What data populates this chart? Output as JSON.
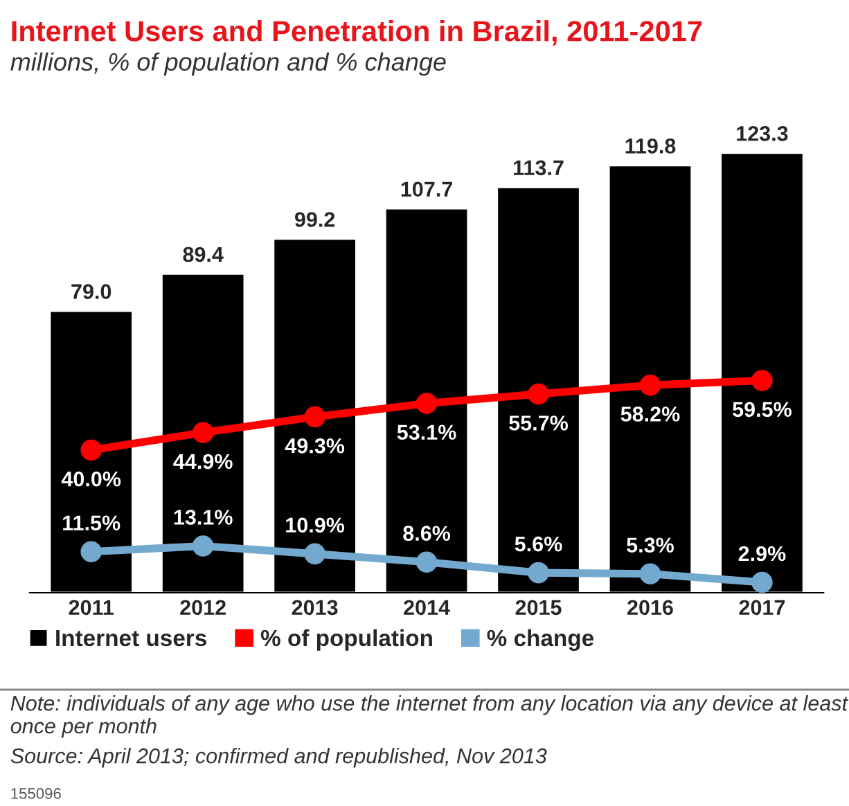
{
  "chart_data": {
    "type": "bar",
    "title": "Internet Users and Penetration in Brazil, 2011-2017",
    "subtitle": "millions, % of population and % change",
    "categories": [
      "2011",
      "2012",
      "2013",
      "2014",
      "2015",
      "2016",
      "2017"
    ],
    "series": [
      {
        "name": "Internet users",
        "color": "#000000",
        "values": [
          79.0,
          89.4,
          99.2,
          107.7,
          113.7,
          119.8,
          123.3
        ],
        "value_labels": [
          "79.0",
          "89.4",
          "99.2",
          "107.7",
          "113.7",
          "119.8",
          "123.3"
        ]
      },
      {
        "name": "% of population",
        "type": "line",
        "color": "#ff0000",
        "values": [
          40.0,
          44.9,
          49.3,
          53.1,
          55.7,
          58.2,
          59.5
        ],
        "value_labels": [
          "40.0%",
          "44.9%",
          "49.3%",
          "53.1%",
          "55.7%",
          "58.2%",
          "59.5%"
        ]
      },
      {
        "name": "% change",
        "type": "line",
        "color": "#74a9cf",
        "values": [
          11.5,
          13.1,
          10.9,
          8.6,
          5.6,
          5.3,
          2.9
        ],
        "value_labels": [
          "11.5%",
          "13.1%",
          "10.9%",
          "8.6%",
          "5.6%",
          "5.3%",
          "2.9%"
        ]
      }
    ],
    "tick_labels": "x",
    "legend": "bottom",
    "marker": "circle",
    "annotations": [
      "Note: individuals of any age who use the internet from any location via any device at least once per month",
      "Source: April 2013; confirmed and republished, Nov 2013",
      "155096"
    ]
  }
}
